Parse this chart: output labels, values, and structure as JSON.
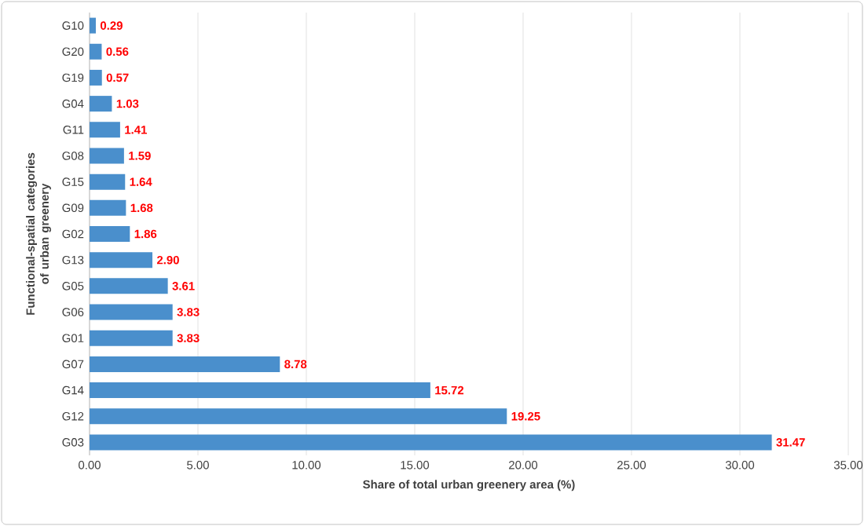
{
  "chart_data": {
    "type": "bar",
    "orientation": "horizontal",
    "xlabel": "Share of total urban greenery area (%)",
    "ylabel": "Functional-spatial categories of urban greenery",
    "categories": [
      "G10",
      "G20",
      "G19",
      "G04",
      "G11",
      "G08",
      "G15",
      "G09",
      "G02",
      "G13",
      "G05",
      "G06",
      "G01",
      "G07",
      "G14",
      "G12",
      "G03"
    ],
    "values": [
      0.29,
      0.56,
      0.57,
      1.03,
      1.41,
      1.59,
      1.64,
      1.68,
      1.86,
      2.9,
      3.61,
      3.83,
      3.83,
      8.78,
      15.72,
      19.25,
      31.47
    ],
    "value_labels": [
      "0.29",
      "0.56",
      "0.57",
      "1.03",
      "1.41",
      "1.59",
      "1.64",
      "1.68",
      "1.86",
      "2.90",
      "3.61",
      "3.83",
      "3.83",
      "8.78",
      "15.72",
      "19.25",
      "31.47"
    ],
    "color": "#4a8fcc",
    "xlim": [
      0,
      35
    ],
    "xticks": [
      {
        "value": 0,
        "label": "0.00"
      },
      {
        "value": 5,
        "label": "5.00"
      },
      {
        "value": 10,
        "label": "10.00"
      },
      {
        "value": 15,
        "label": "15.00"
      },
      {
        "value": 20,
        "label": "20.00"
      },
      {
        "value": 25,
        "label": "25.00"
      },
      {
        "value": 30,
        "label": "30.00"
      },
      {
        "value": 35,
        "label": "35.00"
      }
    ],
    "grid": "x"
  }
}
